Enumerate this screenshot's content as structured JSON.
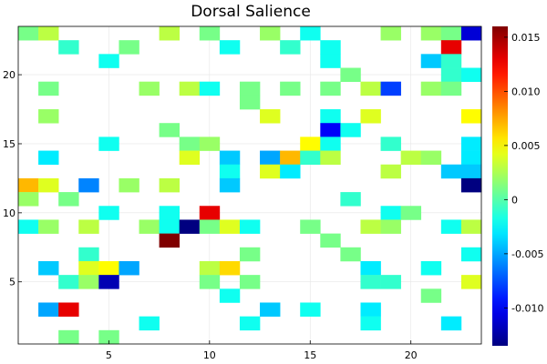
{
  "chart_data": {
    "type": "heatmap",
    "title": "Dorsal Salience",
    "xlabel": "",
    "ylabel": "",
    "xlim": [
      0.5,
      23.5
    ],
    "ylim": [
      0.5,
      23.5
    ],
    "grid": true,
    "colormap": "jet",
    "clim": [
      -0.0135,
      0.016
    ],
    "x_ticks": [
      5,
      10,
      15,
      20
    ],
    "y_ticks": [
      5,
      10,
      15,
      20
    ],
    "colorbar_ticks": [
      {
        "value": 0.015,
        "label": "0.015"
      },
      {
        "value": 0.01,
        "label": "0.010"
      },
      {
        "value": 0.005,
        "label": "0.005"
      },
      {
        "value": 0.0,
        "label": "0"
      },
      {
        "value": -0.005,
        "label": "-0.005"
      },
      {
        "value": -0.01,
        "label": "-0.010"
      }
    ],
    "cells": [
      {
        "x": 1,
        "y": 23,
        "v": 0.001
      },
      {
        "x": 2,
        "y": 23,
        "v": 0.003
      },
      {
        "x": 8,
        "y": 23,
        "v": 0.003
      },
      {
        "x": 10,
        "y": 23,
        "v": 0.001
      },
      {
        "x": 13,
        "y": 23,
        "v": 0.002
      },
      {
        "x": 15,
        "y": 23,
        "v": -0.002
      },
      {
        "x": 19,
        "y": 23,
        "v": 0.002
      },
      {
        "x": 21,
        "y": 23,
        "v": 0.002
      },
      {
        "x": 22,
        "y": 23,
        "v": 0.001
      },
      {
        "x": 23,
        "y": 23,
        "v": -0.011
      },
      {
        "x": 3,
        "y": 22,
        "v": -0.001
      },
      {
        "x": 6,
        "y": 22,
        "v": 0.001
      },
      {
        "x": 11,
        "y": 22,
        "v": -0.002
      },
      {
        "x": 14,
        "y": 22,
        "v": -0.001
      },
      {
        "x": 16,
        "y": 22,
        "v": -0.002
      },
      {
        "x": 22,
        "y": 22,
        "v": 0.013
      },
      {
        "x": 5,
        "y": 21,
        "v": -0.002
      },
      {
        "x": 16,
        "y": 21,
        "v": -0.002
      },
      {
        "x": 21,
        "y": 21,
        "v": -0.004
      },
      {
        "x": 22,
        "y": 21,
        "v": -0.001
      },
      {
        "x": 17,
        "y": 20,
        "v": 0.001
      },
      {
        "x": 22,
        "y": 20,
        "v": -0.001
      },
      {
        "x": 23,
        "y": 20,
        "v": -0.002
      },
      {
        "x": 2,
        "y": 19,
        "v": 0.001
      },
      {
        "x": 7,
        "y": 19,
        "v": 0.002
      },
      {
        "x": 9,
        "y": 19,
        "v": 0.003
      },
      {
        "x": 10,
        "y": 19,
        "v": -0.002
      },
      {
        "x": 12,
        "y": 19,
        "v": 0.001
      },
      {
        "x": 14,
        "y": 19,
        "v": 0.001
      },
      {
        "x": 16,
        "y": 19,
        "v": 0.001
      },
      {
        "x": 18,
        "y": 19,
        "v": 0.003
      },
      {
        "x": 19,
        "y": 19,
        "v": -0.008
      },
      {
        "x": 21,
        "y": 19,
        "v": 0.002
      },
      {
        "x": 22,
        "y": 19,
        "v": 0.001
      },
      {
        "x": 12,
        "y": 18,
        "v": 0.001
      },
      {
        "x": 2,
        "y": 17,
        "v": 0.002
      },
      {
        "x": 13,
        "y": 17,
        "v": 0.004
      },
      {
        "x": 16,
        "y": 17,
        "v": -0.002
      },
      {
        "x": 18,
        "y": 17,
        "v": 0.004
      },
      {
        "x": 23,
        "y": 17,
        "v": 0.005
      },
      {
        "x": 8,
        "y": 16,
        "v": 0.001
      },
      {
        "x": 16,
        "y": 16,
        "v": -0.01
      },
      {
        "x": 17,
        "y": 16,
        "v": -0.002
      },
      {
        "x": 5,
        "y": 15,
        "v": -0.002
      },
      {
        "x": 9,
        "y": 15,
        "v": 0.001
      },
      {
        "x": 10,
        "y": 15,
        "v": 0.002
      },
      {
        "x": 15,
        "y": 15,
        "v": 0.005
      },
      {
        "x": 16,
        "y": 15,
        "v": -0.002
      },
      {
        "x": 19,
        "y": 15,
        "v": -0.001
      },
      {
        "x": 23,
        "y": 15,
        "v": -0.003
      },
      {
        "x": 2,
        "y": 14,
        "v": -0.003
      },
      {
        "x": 9,
        "y": 14,
        "v": 0.004
      },
      {
        "x": 11,
        "y": 14,
        "v": -0.004
      },
      {
        "x": 13,
        "y": 14,
        "v": -0.005
      },
      {
        "x": 14,
        "y": 14,
        "v": 0.007
      },
      {
        "x": 15,
        "y": 14,
        "v": -0.001
      },
      {
        "x": 16,
        "y": 14,
        "v": 0.003
      },
      {
        "x": 20,
        "y": 14,
        "v": 0.003
      },
      {
        "x": 21,
        "y": 14,
        "v": 0.002
      },
      {
        "x": 23,
        "y": 14,
        "v": -0.003
      },
      {
        "x": 11,
        "y": 13,
        "v": -0.002
      },
      {
        "x": 13,
        "y": 13,
        "v": 0.004
      },
      {
        "x": 14,
        "y": 13,
        "v": -0.003
      },
      {
        "x": 19,
        "y": 13,
        "v": 0.003
      },
      {
        "x": 22,
        "y": 13,
        "v": -0.004
      },
      {
        "x": 23,
        "y": 13,
        "v": -0.004
      },
      {
        "x": 1,
        "y": 12,
        "v": 0.007
      },
      {
        "x": 2,
        "y": 12,
        "v": 0.004
      },
      {
        "x": 4,
        "y": 12,
        "v": -0.006
      },
      {
        "x": 6,
        "y": 12,
        "v": 0.002
      },
      {
        "x": 8,
        "y": 12,
        "v": 0.003
      },
      {
        "x": 11,
        "y": 12,
        "v": -0.004
      },
      {
        "x": 23,
        "y": 12,
        "v": -0.0135
      },
      {
        "x": 1,
        "y": 11,
        "v": 0.002
      },
      {
        "x": 3,
        "y": 11,
        "v": 0.001
      },
      {
        "x": 17,
        "y": 11,
        "v": -0.001
      },
      {
        "x": 5,
        "y": 10,
        "v": -0.002
      },
      {
        "x": 8,
        "y": 10,
        "v": -0.002
      },
      {
        "x": 10,
        "y": 10,
        "v": 0.013
      },
      {
        "x": 19,
        "y": 10,
        "v": -0.002
      },
      {
        "x": 20,
        "y": 10,
        "v": 0.001
      },
      {
        "x": 1,
        "y": 9,
        "v": -0.002
      },
      {
        "x": 2,
        "y": 9,
        "v": 0.002
      },
      {
        "x": 4,
        "y": 9,
        "v": 0.003
      },
      {
        "x": 7,
        "y": 9,
        "v": 0.002
      },
      {
        "x": 8,
        "y": 9,
        "v": -0.002
      },
      {
        "x": 9,
        "y": 9,
        "v": -0.0135
      },
      {
        "x": 10,
        "y": 9,
        "v": 0.001
      },
      {
        "x": 11,
        "y": 9,
        "v": 0.004
      },
      {
        "x": 12,
        "y": 9,
        "v": -0.002
      },
      {
        "x": 15,
        "y": 9,
        "v": 0.001
      },
      {
        "x": 18,
        "y": 9,
        "v": 0.003
      },
      {
        "x": 19,
        "y": 9,
        "v": 0.002
      },
      {
        "x": 22,
        "y": 9,
        "v": -0.002
      },
      {
        "x": 23,
        "y": 9,
        "v": 0.003
      },
      {
        "x": 8,
        "y": 8,
        "v": 0.016
      },
      {
        "x": 16,
        "y": 8,
        "v": 0.001
      },
      {
        "x": 4,
        "y": 7,
        "v": -0.001
      },
      {
        "x": 12,
        "y": 7,
        "v": 0.001
      },
      {
        "x": 17,
        "y": 7,
        "v": 0.001
      },
      {
        "x": 23,
        "y": 7,
        "v": -0.002
      },
      {
        "x": 2,
        "y": 6,
        "v": -0.004
      },
      {
        "x": 4,
        "y": 6,
        "v": 0.004
      },
      {
        "x": 5,
        "y": 6,
        "v": 0.005
      },
      {
        "x": 6,
        "y": 6,
        "v": -0.005
      },
      {
        "x": 10,
        "y": 6,
        "v": 0.003
      },
      {
        "x": 11,
        "y": 6,
        "v": 0.006
      },
      {
        "x": 18,
        "y": 6,
        "v": -0.003
      },
      {
        "x": 21,
        "y": 6,
        "v": -0.002
      },
      {
        "x": 3,
        "y": 5,
        "v": -0.001
      },
      {
        "x": 4,
        "y": 5,
        "v": 0.002
      },
      {
        "x": 5,
        "y": 5,
        "v": -0.012
      },
      {
        "x": 10,
        "y": 5,
        "v": 0.001
      },
      {
        "x": 12,
        "y": 5,
        "v": 0.001
      },
      {
        "x": 18,
        "y": 5,
        "v": -0.001
      },
      {
        "x": 19,
        "y": 5,
        "v": -0.001
      },
      {
        "x": 23,
        "y": 5,
        "v": 0.004
      },
      {
        "x": 11,
        "y": 4,
        "v": -0.002
      },
      {
        "x": 21,
        "y": 4,
        "v": 0.001
      },
      {
        "x": 2,
        "y": 3,
        "v": -0.005
      },
      {
        "x": 3,
        "y": 3,
        "v": 0.013
      },
      {
        "x": 13,
        "y": 3,
        "v": -0.004
      },
      {
        "x": 15,
        "y": 3,
        "v": -0.002
      },
      {
        "x": 18,
        "y": 3,
        "v": -0.003
      },
      {
        "x": 7,
        "y": 2,
        "v": -0.002
      },
      {
        "x": 12,
        "y": 2,
        "v": -0.002
      },
      {
        "x": 18,
        "y": 2,
        "v": -0.002
      },
      {
        "x": 22,
        "y": 2,
        "v": -0.003
      },
      {
        "x": 3,
        "y": 1,
        "v": 0.001
      },
      {
        "x": 5,
        "y": 1,
        "v": 0.001
      }
    ]
  }
}
